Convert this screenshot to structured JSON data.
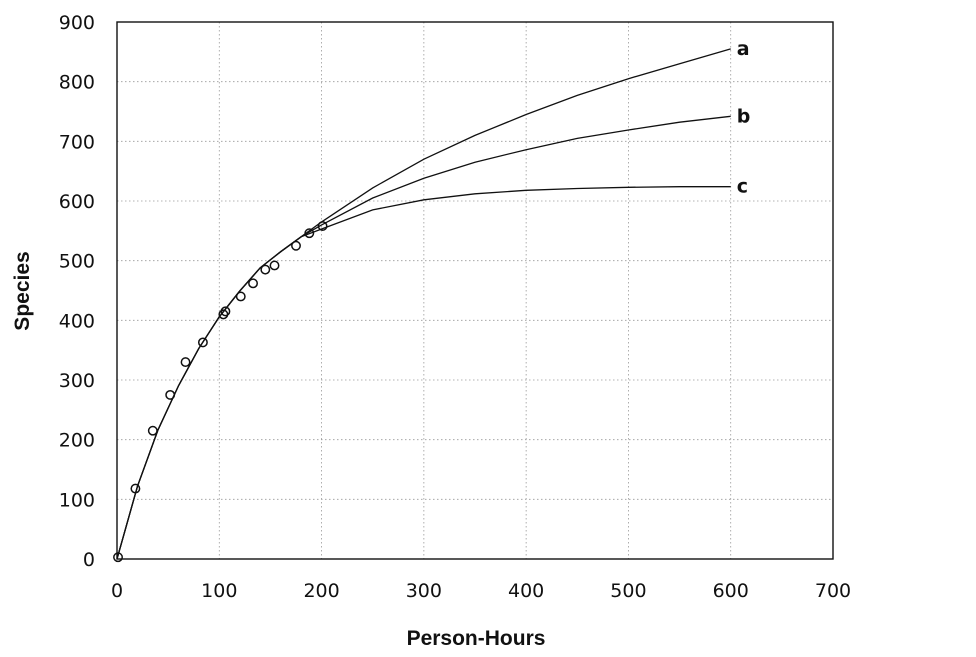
{
  "chart_data": {
    "type": "line",
    "title": "",
    "xlabel": "Person-Hours",
    "ylabel": "Species",
    "xlim": [
      0,
      700
    ],
    "ylim": [
      0,
      900
    ],
    "xticks": [
      0,
      100,
      200,
      300,
      400,
      500,
      600,
      700
    ],
    "yticks": [
      0,
      100,
      200,
      300,
      400,
      500,
      600,
      700,
      800,
      900
    ],
    "grid": true,
    "legend": "none",
    "series": [
      {
        "name": "a",
        "x": [
          0,
          20,
          40,
          60,
          80,
          100,
          120,
          140,
          160,
          180,
          200,
          250,
          300,
          350,
          400,
          450,
          500,
          550,
          600
        ],
        "values": [
          0,
          122,
          216,
          290,
          353,
          406,
          449,
          488,
          515,
          540,
          565,
          622,
          670,
          710,
          745,
          777,
          805,
          830,
          855
        ]
      },
      {
        "name": "b",
        "x": [
          0,
          20,
          40,
          60,
          80,
          100,
          120,
          140,
          160,
          180,
          200,
          250,
          300,
          350,
          400,
          450,
          500,
          550,
          600
        ],
        "values": [
          0,
          122,
          216,
          290,
          353,
          406,
          449,
          488,
          515,
          540,
          560,
          605,
          638,
          665,
          686,
          705,
          719,
          732,
          742
        ]
      },
      {
        "name": "c",
        "x": [
          0,
          20,
          40,
          60,
          80,
          100,
          120,
          140,
          160,
          180,
          200,
          250,
          300,
          350,
          400,
          450,
          500,
          550,
          600
        ],
        "values": [
          0,
          122,
          216,
          290,
          353,
          406,
          449,
          488,
          515,
          540,
          553,
          585,
          602,
          612,
          618,
          621,
          623,
          624,
          624
        ]
      }
    ],
    "points": {
      "x": [
        1,
        18,
        35,
        52,
        67,
        84,
        104,
        106,
        121,
        133,
        145,
        154,
        175,
        188,
        201
      ],
      "y": [
        3,
        118,
        215,
        275,
        330,
        363,
        410,
        415,
        440,
        462,
        485,
        492,
        525,
        546,
        558
      ]
    }
  }
}
